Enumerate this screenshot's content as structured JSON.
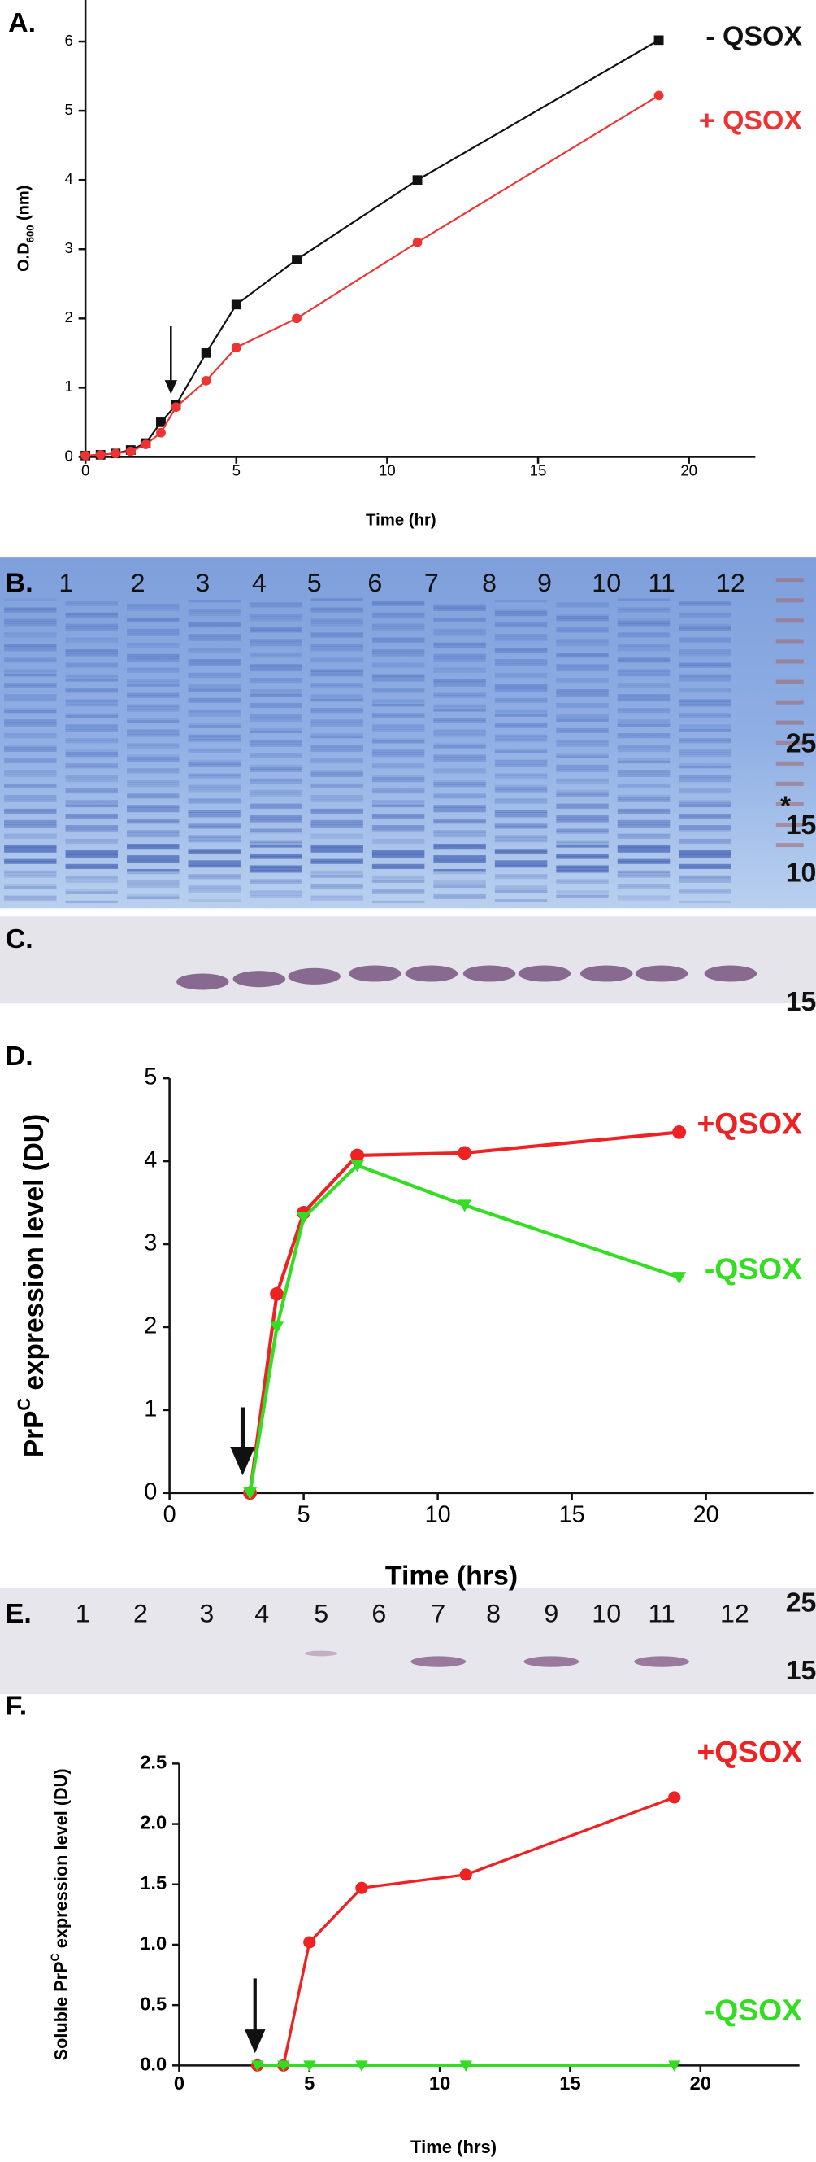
{
  "panel_labels": [
    "A.",
    "B.",
    "C.",
    "D.",
    "E.",
    "F."
  ],
  "chart_data": [
    {
      "type": "line",
      "xlabel": "Time (hr)",
      "ylabel_parts": [
        "O.D",
        "600",
        " (nm)"
      ],
      "ylabel_style": "sub",
      "x": [
        0,
        0.5,
        1,
        1.5,
        2,
        2.5,
        3,
        4,
        5,
        7,
        11,
        19
      ],
      "series": [
        {
          "name": "- QSOX",
          "color": "#111111",
          "marker": "square",
          "values": [
            0.02,
            0.03,
            0.05,
            0.1,
            0.2,
            0.5,
            0.75,
            1.5,
            2.2,
            2.85,
            4.0,
            6.02
          ]
        },
        {
          "name": "+ QSOX",
          "color": "#ee3333",
          "marker": "circle",
          "values": [
            0.02,
            0.03,
            0.05,
            0.08,
            0.18,
            0.35,
            0.72,
            1.1,
            1.58,
            2.0,
            3.1,
            5.22
          ]
        }
      ],
      "xlim": [
        0,
        22.2
      ],
      "ylim": [
        0,
        6.6
      ],
      "xticks": [
        0,
        5,
        10,
        15,
        20
      ],
      "yticks": [
        0,
        1,
        2,
        3,
        4,
        5,
        6
      ]
    },
    {
      "type": "line",
      "xlabel": "Time (hrs)",
      "ylabel_parts": [
        "PrP",
        "C",
        " expression level (DU)"
      ],
      "ylabel_style": "sup",
      "x": [
        3,
        4,
        5,
        7,
        11,
        19
      ],
      "series": [
        {
          "name": "+QSOX",
          "color": "#ee2222",
          "marker": "circle",
          "values": [
            0,
            2.4,
            3.38,
            4.07,
            4.1,
            4.35
          ]
        },
        {
          "name": "-QSOX",
          "color": "#33dd22",
          "marker": "triangle",
          "values": [
            0,
            2.0,
            3.32,
            3.95,
            3.47,
            2.6
          ]
        }
      ],
      "xlim": [
        0,
        24
      ],
      "ylim": [
        0,
        5
      ],
      "xticks": [
        0,
        5,
        10,
        15,
        20
      ],
      "yticks": [
        0,
        1,
        2,
        3,
        4,
        5
      ]
    },
    {
      "type": "line",
      "xlabel": "Time (hrs)",
      "ylabel_parts": [
        "Soluble PrP",
        "C",
        " expression level (DU)"
      ],
      "ylabel_style": "sup",
      "x": [
        3,
        4,
        5,
        7,
        11,
        19
      ],
      "series": [
        {
          "name": "+QSOX",
          "color": "#ee2222",
          "marker": "circle",
          "values": [
            0,
            0,
            1.02,
            1.47,
            1.58,
            2.22
          ]
        },
        {
          "name": "-QSOX",
          "color": "#33dd22",
          "marker": "triangle",
          "values": [
            0,
            0,
            0,
            0,
            0,
            0
          ]
        }
      ],
      "xlim": [
        0,
        23.8
      ],
      "ylim": [
        0,
        2.5
      ],
      "xticks": [
        0,
        5,
        10,
        15,
        20
      ],
      "yticks": [
        {
          "value": 0,
          "label": "0.0"
        },
        {
          "value": 0.5,
          "label": "0.5"
        },
        {
          "value": 1,
          "label": "1.0"
        },
        {
          "value": 1.5,
          "label": "1.5"
        },
        {
          "value": 2,
          "label": "2.0"
        },
        {
          "value": 2.5,
          "label": "2.5"
        }
      ]
    }
  ],
  "gels": {
    "b_lanes": [
      "1",
      "2",
      "3",
      "4",
      "5",
      "6",
      "7",
      "8",
      "9",
      "10",
      "11",
      "12"
    ],
    "b_markers": [
      "25",
      "*",
      "15",
      "10"
    ],
    "c_marker": "15",
    "e_lanes": [
      "1",
      "2",
      "3",
      "4",
      "5",
      "6",
      "7",
      "8",
      "9",
      "10",
      "11",
      "12"
    ],
    "e_markers": [
      "25",
      "15"
    ]
  }
}
